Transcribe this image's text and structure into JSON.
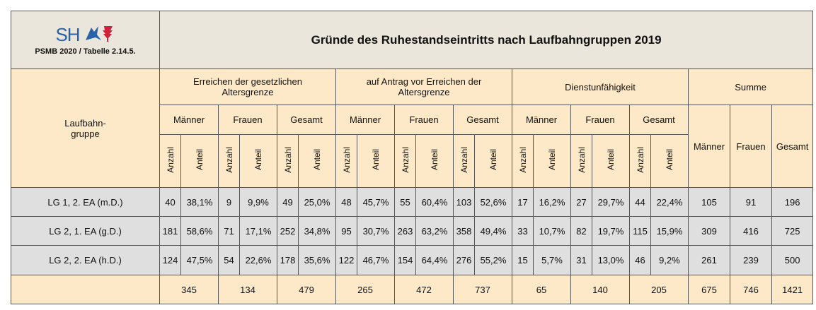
{
  "logo": "SH",
  "source": "PSMB 2020 / Tabelle 2.14.5.",
  "title": "Gründe des Ruhestandseintritts nach Laufbahngruppen 2019",
  "row_header": [
    "Laufbahn-",
    "gruppe"
  ],
  "groups": [
    "Erreichen der gesetzlichen Altersgrenze",
    "auf Antrag vor Erreichen der Altersgrenze",
    "Dienstunfähigkeit",
    "Summe"
  ],
  "subgroups": [
    "Männer",
    "Frauen",
    "Gesamt"
  ],
  "measures": [
    "Anzahl",
    "Anteil"
  ],
  "rows": [
    {
      "label": "LG 1, 2. EA (m.D.)",
      "cells": [
        "40",
        "38,1%",
        "9",
        "9,9%",
        "49",
        "25,0%",
        "48",
        "45,7%",
        "55",
        "60,4%",
        "103",
        "52,6%",
        "17",
        "16,2%",
        "27",
        "29,7%",
        "44",
        "22,4%",
        "105",
        "91",
        "196"
      ]
    },
    {
      "label": "LG 2, 1. EA (g.D.)",
      "cells": [
        "181",
        "58,6%",
        "71",
        "17,1%",
        "252",
        "34,8%",
        "95",
        "30,7%",
        "263",
        "63,2%",
        "358",
        "49,4%",
        "33",
        "10,7%",
        "82",
        "19,7%",
        "115",
        "15,9%",
        "309",
        "416",
        "725"
      ]
    },
    {
      "label": "LG 2, 2. EA (h.D.)",
      "cells": [
        "124",
        "47,5%",
        "54",
        "22,6%",
        "178",
        "35,6%",
        "122",
        "46,7%",
        "154",
        "64,4%",
        "276",
        "55,2%",
        "15",
        "5,7%",
        "31",
        "13,0%",
        "46",
        "9,2%",
        "261",
        "239",
        "500"
      ]
    }
  ],
  "totals": [
    "345",
    "134",
    "479",
    "265",
    "472",
    "737",
    "65",
    "140",
    "205",
    "675",
    "746",
    "1421"
  ]
}
